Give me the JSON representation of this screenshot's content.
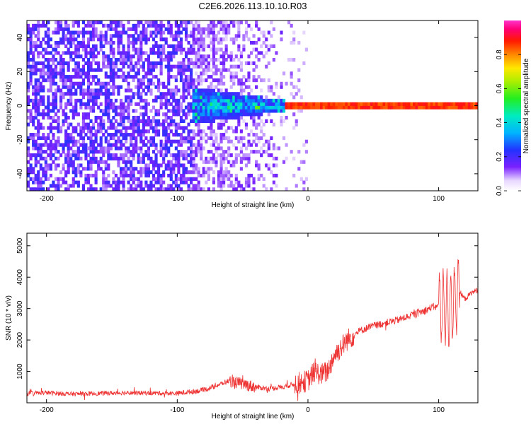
{
  "title": "C2E6.2026.113.10.10.R03",
  "colors": {
    "snr_line": "#ee3333",
    "axis": "#000000",
    "background": "#ffffff"
  },
  "chart_data": [
    {
      "type": "heatmap",
      "xlabel": "Height of straight line (km)",
      "ylabel": "Frequency (Hz)",
      "xlim": [
        -215,
        130
      ],
      "ylim": [
        -50,
        50
      ],
      "xticks": [
        -200,
        -100,
        0,
        100
      ],
      "yticks": [
        -40,
        -20,
        0,
        20,
        40
      ],
      "colorbar": {
        "label": "Normalized spectral amplitude",
        "range": [
          0,
          1
        ],
        "ticks": [
          0,
          0.2,
          0.4,
          0.6,
          0.8
        ],
        "tick_labels": [
          "0.0",
          "0.2",
          "0.4",
          "0.6",
          "0.8"
        ],
        "colormap": "rainbow (white-violet-blue-cyan-green-yellow-red-magenta)"
      },
      "features": {
        "scattered_noise": {
          "x_range": [
            -215,
            -85
          ],
          "freq_range": [
            -50,
            50
          ],
          "amplitude": [
            0.15,
            0.3
          ]
        },
        "fading_noise": {
          "x_range": [
            -85,
            -15
          ],
          "amplitude": [
            0.05,
            0.2
          ]
        },
        "spreading_signal": {
          "x_range": [
            -95,
            -15
          ],
          "freq_halfwidth": [
            10,
            3
          ],
          "amplitude": [
            0.3,
            0.55
          ]
        },
        "narrow_line": {
          "x_range": [
            -15,
            130
          ],
          "center_freq_hz": 0,
          "halfwidth_hz": 2.5,
          "core_amplitude": 0.85
        }
      }
    },
    {
      "type": "line",
      "xlabel": "Height of straight line (km)",
      "ylabel": "SNR (10 * v/v)",
      "xlim": [
        -215,
        130
      ],
      "ylim": [
        0,
        5400
      ],
      "xticks": [
        -200,
        -100,
        0,
        100
      ],
      "yticks": [
        1000,
        2000,
        3000,
        4000,
        5000
      ],
      "series": [
        {
          "color": "#ee3333",
          "x": [
            -215,
            -200,
            -180,
            -160,
            -140,
            -120,
            -100,
            -80,
            -60,
            -40,
            -30,
            -20,
            -10,
            0,
            5,
            10,
            15,
            20,
            30,
            40,
            50,
            60,
            70,
            80,
            90,
            95,
            100,
            105,
            110,
            115,
            120,
            125,
            130
          ],
          "y": [
            300,
            320,
            280,
            300,
            320,
            310,
            300,
            400,
            700,
            500,
            450,
            500,
            600,
            700,
            1000,
            900,
            1000,
            1500,
            2000,
            2300,
            2450,
            2550,
            2650,
            2800,
            2950,
            3050,
            3050,
            3000,
            3000,
            3600,
            3300,
            3500,
            3600
          ]
        }
      ]
    }
  ]
}
